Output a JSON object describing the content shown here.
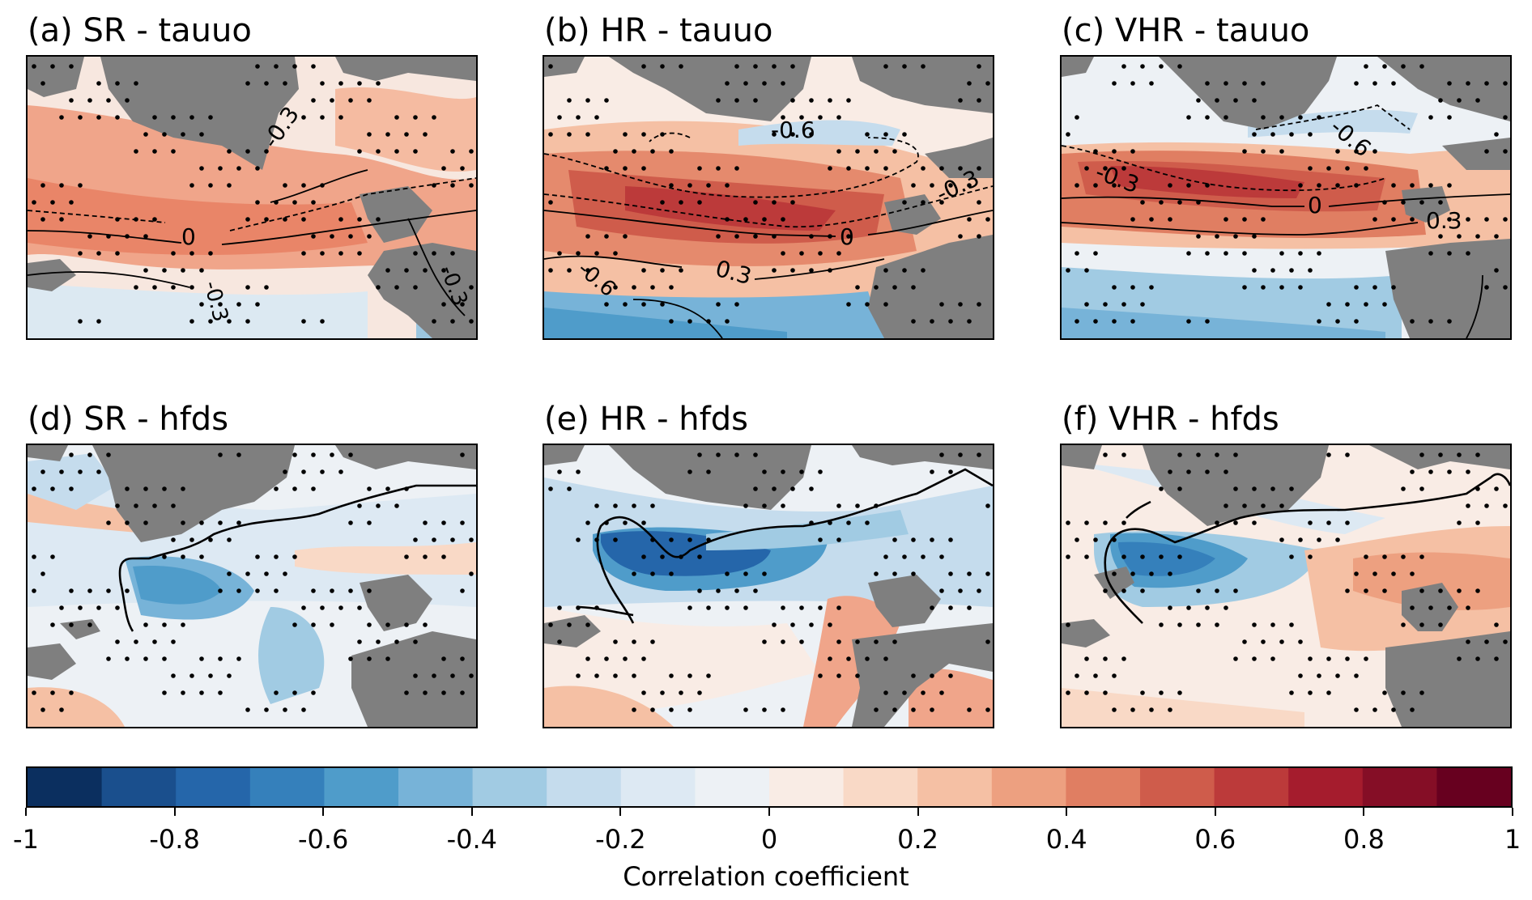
{
  "panels": [
    {
      "title": "(a) SR - tauuo",
      "contours": [
        "-0.3",
        "0",
        "-0.3",
        "-0.3"
      ]
    },
    {
      "title": "(b) HR - tauuo",
      "contours": [
        "-0.6",
        "-0.3",
        "0",
        "0.3",
        "-0.6"
      ]
    },
    {
      "title": "(c) VHR - tauuo",
      "contours": [
        "-0.6",
        "-0.3",
        "0",
        "0.3"
      ]
    },
    {
      "title": "(d) SR - hfds",
      "contours": []
    },
    {
      "title": "(e) HR - hfds",
      "contours": []
    },
    {
      "title": "(f) VHR - hfds",
      "contours": []
    }
  ],
  "colorbar": {
    "label": "Correlation coefficient",
    "min": -1,
    "max": 1,
    "step": 0.1,
    "tick_labels": [
      "-1",
      "-0.8",
      "-0.6",
      "-0.4",
      "-0.2",
      "0",
      "0.2",
      "0.4",
      "0.6",
      "0.8",
      "1"
    ],
    "colors": [
      "#0b2f5f",
      "#1a4f8d",
      "#2566aa",
      "#3580bb",
      "#4f9cca",
      "#77b3d8",
      "#a1cbe3",
      "#c5dced",
      "#dde9f3",
      "#edf1f5",
      "#f9ece5",
      "#f9d9c6",
      "#f5c0a4",
      "#eda080",
      "#e07e62",
      "#cf5c4b",
      "#bc3a3a",
      "#a51c2d",
      "#850e26",
      "#67001f"
    ]
  },
  "colors": {
    "land": "#7f7f7f",
    "stipple": "#000000",
    "contour": "#000000"
  }
}
